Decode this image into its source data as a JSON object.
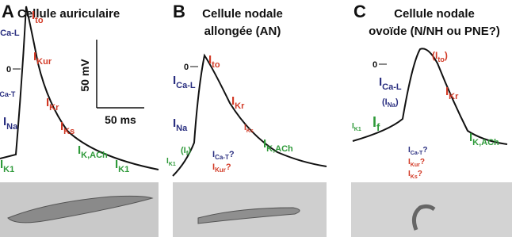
{
  "panels": [
    {
      "letter": "A",
      "title": [
        "Cellule auriculaire"
      ],
      "zero": "0",
      "scale": {
        "voltage": "50 mV",
        "time": "50 ms"
      },
      "labels": [
        {
          "main": "I",
          "sub": "Ca-L"
        },
        {
          "main": "I",
          "sub": "Ca-T"
        },
        {
          "main": "I",
          "sub": "Na"
        },
        {
          "main": "I",
          "sub": "K1"
        },
        {
          "main": "I",
          "sub": "to"
        },
        {
          "main": "I",
          "sub": "Kur"
        },
        {
          "main": "I",
          "sub": "Kr"
        },
        {
          "main": "I",
          "sub": "Ks"
        },
        {
          "main": "I",
          "sub": "K,ACh"
        },
        {
          "main": "I",
          "sub": "K1"
        }
      ]
    },
    {
      "letter": "B",
      "title": [
        "Cellule nodale",
        "allongée (AN)"
      ],
      "zero": "0",
      "labels": [
        {
          "main": "I",
          "sub": "to"
        },
        {
          "main": "I",
          "sub": "Ca-L"
        },
        {
          "main": "I",
          "sub": "Na"
        },
        {
          "pre": "(",
          "main": "I",
          "sub": "f",
          "post": ")"
        },
        {
          "main": "I",
          "sub": "K1"
        },
        {
          "main": "I",
          "sub": "Kr"
        },
        {
          "main": "I",
          "sub": "Ks"
        },
        {
          "main": "I",
          "sub": "Ca-T",
          "post": "?"
        },
        {
          "main": "I",
          "sub": "Kur",
          "post": "?"
        },
        {
          "main": "I",
          "sub": "K,ACh"
        }
      ]
    },
    {
      "letter": "C",
      "title": [
        "Cellule nodale",
        "ovoïde (N/NH ou PNE?)"
      ],
      "zero": "0",
      "labels": [
        {
          "pre": "(",
          "main": "I",
          "sub": "to",
          "post": ")"
        },
        {
          "main": "I",
          "sub": "Ca-L"
        },
        {
          "pre": "(",
          "main": "I",
          "sub": "Na",
          "post": ")"
        },
        {
          "main": "I",
          "sub": "K1"
        },
        {
          "main": "I",
          "sub": "f"
        },
        {
          "main": "I",
          "sub": "Kr"
        },
        {
          "main": "I",
          "sub": "Ca-T",
          "post": "?"
        },
        {
          "main": "I",
          "sub": "Kur",
          "post": "?"
        },
        {
          "main": "I",
          "sub": "Ks",
          "post": "?"
        },
        {
          "main": "I",
          "sub": "K,ACh"
        }
      ]
    }
  ]
}
